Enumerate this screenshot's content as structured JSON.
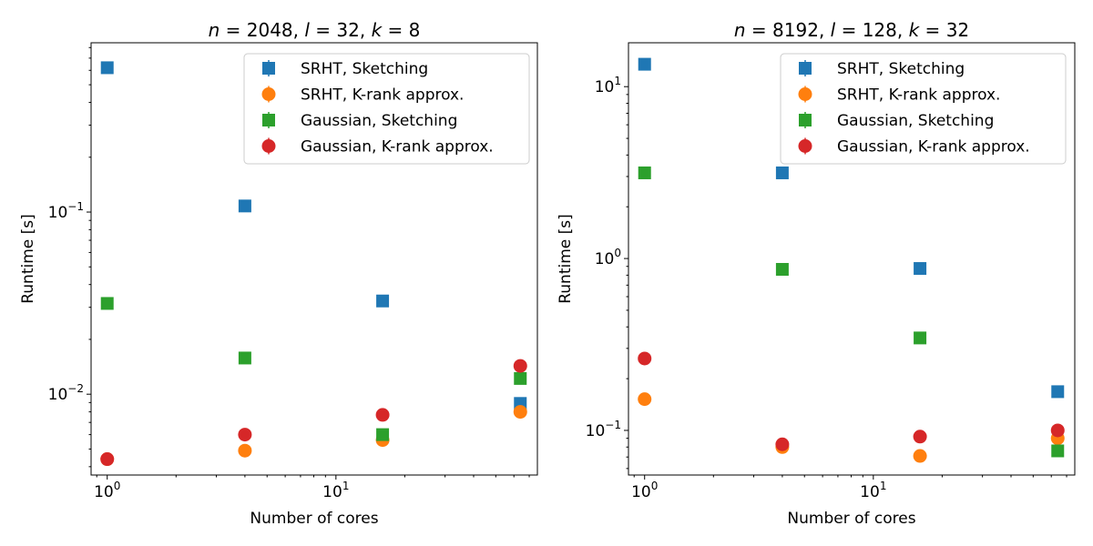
{
  "chart_data": [
    {
      "type": "scatter",
      "title": "n = 2048, l = 32, k = 8",
      "title_parts": {
        "n": "2048",
        "l": "32",
        "k": "8"
      },
      "xlabel": "Number of cores",
      "ylabel": "Runtime [s]",
      "xscale": "log",
      "yscale": "log",
      "xlim": [
        0.85,
        76
      ],
      "ylim": [
        0.0036,
        0.85
      ],
      "xticks": [
        {
          "value": 1,
          "base": "10",
          "exp": "0"
        },
        {
          "value": 10,
          "base": "10",
          "exp": "1"
        }
      ],
      "yticks": [
        {
          "value": 0.01,
          "base": "10",
          "exp": "−2"
        },
        {
          "value": 0.1,
          "base": "10",
          "exp": "−1"
        }
      ],
      "legend_position": "top-right",
      "series": [
        {
          "name": "SRHT, Sketching",
          "marker": "square",
          "color": "#1f77b4",
          "x": [
            1,
            4,
            16,
            64
          ],
          "y": [
            0.62,
            0.108,
            0.0325,
            0.0089
          ]
        },
        {
          "name": "SRHT, K-rank approx.",
          "marker": "circle",
          "color": "#ff7f0e",
          "x": [
            1,
            4,
            16,
            64
          ],
          "y": [
            0.0044,
            0.0049,
            0.0056,
            0.008
          ]
        },
        {
          "name": "Gaussian, Sketching",
          "marker": "square",
          "color": "#2ca02c",
          "x": [
            1,
            4,
            16,
            64
          ],
          "y": [
            0.0315,
            0.0158,
            0.006,
            0.0122
          ]
        },
        {
          "name": "Gaussian, K-rank approx.",
          "marker": "circle",
          "color": "#d62728",
          "x": [
            1,
            4,
            16,
            64
          ],
          "y": [
            0.0044,
            0.006,
            0.0077,
            0.0143
          ]
        }
      ]
    },
    {
      "type": "scatter",
      "title": "n = 8192, l = 128, k = 32",
      "title_parts": {
        "n": "8192",
        "l": "128",
        "k": "32"
      },
      "xlabel": "Number of cores",
      "ylabel": "Runtime [s]",
      "xscale": "log",
      "yscale": "log",
      "xlim": [
        0.85,
        76
      ],
      "ylim": [
        0.055,
        18
      ],
      "xticks": [
        {
          "value": 1,
          "base": "10",
          "exp": "0"
        },
        {
          "value": 10,
          "base": "10",
          "exp": "1"
        }
      ],
      "yticks": [
        {
          "value": 0.1,
          "base": "10",
          "exp": "−1"
        },
        {
          "value": 1,
          "base": "10",
          "exp": "0"
        },
        {
          "value": 10,
          "base": "10",
          "exp": "1"
        }
      ],
      "legend_position": "top-right",
      "series": [
        {
          "name": "SRHT, Sketching",
          "marker": "square",
          "color": "#1f77b4",
          "x": [
            1,
            4,
            16,
            64
          ],
          "y": [
            13.5,
            3.15,
            0.875,
            0.168
          ]
        },
        {
          "name": "SRHT, K-rank approx.",
          "marker": "circle",
          "color": "#ff7f0e",
          "x": [
            1,
            4,
            16,
            64
          ],
          "y": [
            0.152,
            0.08,
            0.071,
            0.09
          ]
        },
        {
          "name": "Gaussian, Sketching",
          "marker": "square",
          "color": "#2ca02c",
          "x": [
            1,
            4,
            16,
            64
          ],
          "y": [
            3.15,
            0.865,
            0.345,
            0.076
          ]
        },
        {
          "name": "Gaussian, K-rank approx.",
          "marker": "circle",
          "color": "#d62728",
          "x": [
            1,
            4,
            16,
            64
          ],
          "y": [
            0.262,
            0.083,
            0.092,
            0.1
          ]
        }
      ]
    }
  ]
}
